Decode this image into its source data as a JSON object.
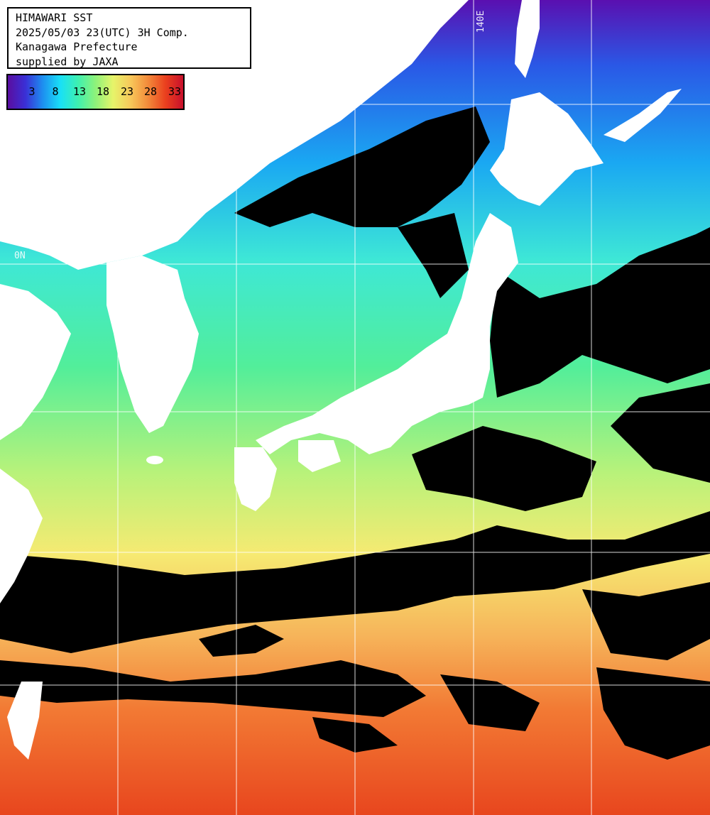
{
  "title_block": {
    "line1": "HIMAWARI SST",
    "line2": "2025/05/03 23(UTC) 3H Comp.",
    "line3": "Kanagawa Prefecture",
    "line4": "supplied by JAXA"
  },
  "legend": {
    "ticks": [
      "3",
      "8",
      "13",
      "18",
      "23",
      "28",
      "33"
    ],
    "gradient_colors": [
      "#5a0ea0",
      "#3a2fd6",
      "#1d8ff0",
      "#19e0f6",
      "#3ef0b0",
      "#8ef27a",
      "#e6f46a",
      "#f7c85a",
      "#f38a3a",
      "#ea3f1e",
      "#c8102c"
    ]
  },
  "grid_labels": {
    "lon_140": "140E",
    "lat_upper": "0N",
    "lat_lower": "0N"
  },
  "colors": {
    "land": "#ffffff",
    "cloud_mask": "#000000",
    "grid": "#ffffff"
  }
}
